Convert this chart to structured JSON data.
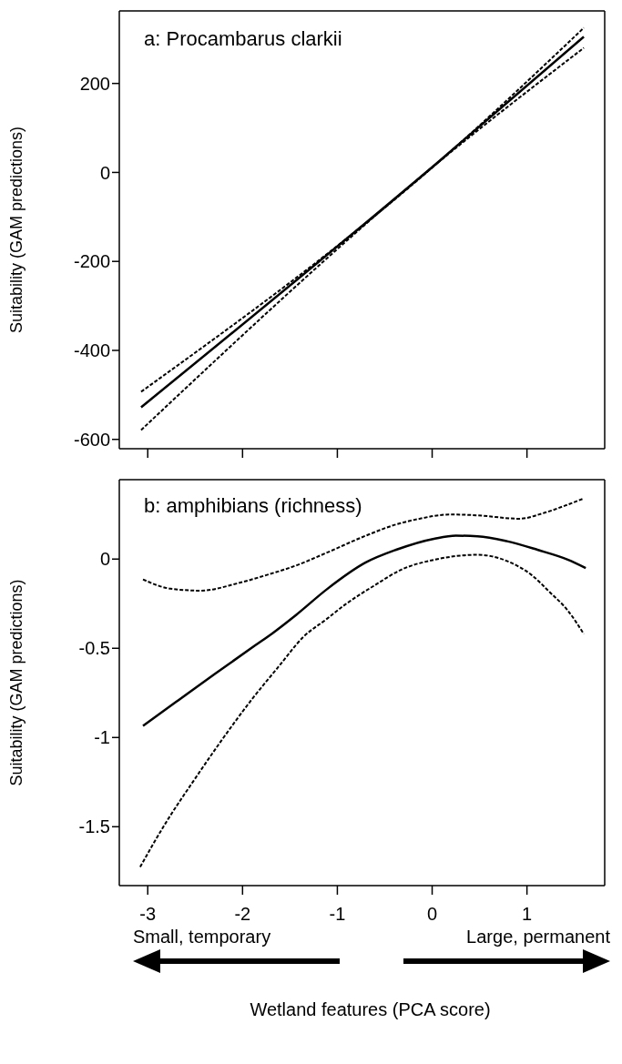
{
  "chart_data": [
    {
      "type": "line",
      "title": "a: Procambarus clarkii",
      "ylabel": "Suitability (GAM predictions)",
      "xlim": [
        -3.3,
        1.82
      ],
      "xticks": [
        -3,
        -2,
        -1,
        0,
        1
      ],
      "ylim": [
        -621,
        363
      ],
      "yticks": [
        -600,
        -400,
        -200,
        0,
        200
      ],
      "tick_labels": "y",
      "marker": "none",
      "series": [
        {
          "color": "#000000",
          "line_style": "dashed",
          "x": [
            -3.07,
            0.05,
            1.6
          ],
          "values": [
            -493,
            20,
            325
          ]
        },
        {
          "color": "#000000",
          "line_style": "solid",
          "x": [
            -3.07,
            0.05,
            1.6
          ],
          "values": [
            -528,
            21,
            305
          ]
        },
        {
          "color": "#000000",
          "line_style": "dashed",
          "x": [
            -3.07,
            0.05,
            1.6
          ],
          "values": [
            -579,
            20,
            280
          ]
        }
      ]
    },
    {
      "type": "line",
      "title": "b: amphibians (richness)",
      "ylabel": "Suitability (GAM predictions)",
      "xlabel": "Wetland features (PCA score)",
      "xlim": [
        -3.3,
        1.82
      ],
      "xticks": [
        -3,
        -2,
        -1,
        0,
        1
      ],
      "ylim": [
        -1.83,
        0.445
      ],
      "yticks": [
        -1.5,
        -1,
        -0.5,
        0
      ],
      "marker": "none",
      "annotations": [
        "Small, temporary",
        "Large, permanent"
      ],
      "series": [
        {
          "color": "#000000",
          "line_style": "dashed",
          "x": [
            -3.05,
            -2.76,
            -2.44,
            -2.06,
            -1.75,
            -1.43,
            -1.11,
            -0.7,
            -0.38,
            -0.16,
            0.19,
            0.48,
            0.92,
            1.17,
            1.43,
            1.6
          ],
          "values": [
            -0.114,
            -0.166,
            -0.177,
            -0.137,
            -0.09,
            -0.035,
            0.036,
            0.131,
            0.194,
            0.223,
            0.25,
            0.245,
            0.226,
            0.257,
            0.305,
            0.34
          ]
        },
        {
          "color": "#000000",
          "line_style": "solid",
          "x": [
            -3.05,
            -2.7,
            -2.29,
            -1.87,
            -1.68,
            -1.43,
            -1.11,
            -0.7,
            -0.38,
            0.03,
            0.25,
            0.48,
            0.79,
            1.11,
            1.43,
            1.62
          ],
          "values": [
            -0.935,
            -0.8,
            -0.643,
            -0.485,
            -0.414,
            -0.311,
            -0.169,
            -0.019,
            0.052,
            0.115,
            0.131,
            0.128,
            0.1,
            0.052,
            -0.003,
            -0.05
          ]
        },
        {
          "color": "#000000",
          "line_style": "dashed",
          "x": [
            -3.08,
            -2.8,
            -2.5,
            -2.24,
            -1.9,
            -1.62,
            -1.36,
            -1.11,
            -0.92,
            -0.6,
            -0.32,
            0.03,
            0.48,
            0.79,
            1.05,
            1.24,
            1.43,
            1.6
          ],
          "values": [
            -1.725,
            -1.47,
            -1.23,
            -1.03,
            -0.785,
            -0.603,
            -0.437,
            -0.335,
            -0.256,
            -0.145,
            -0.058,
            -0.003,
            0.024,
            -0.011,
            -0.09,
            -0.185,
            -0.288,
            -0.42
          ]
        }
      ]
    }
  ]
}
